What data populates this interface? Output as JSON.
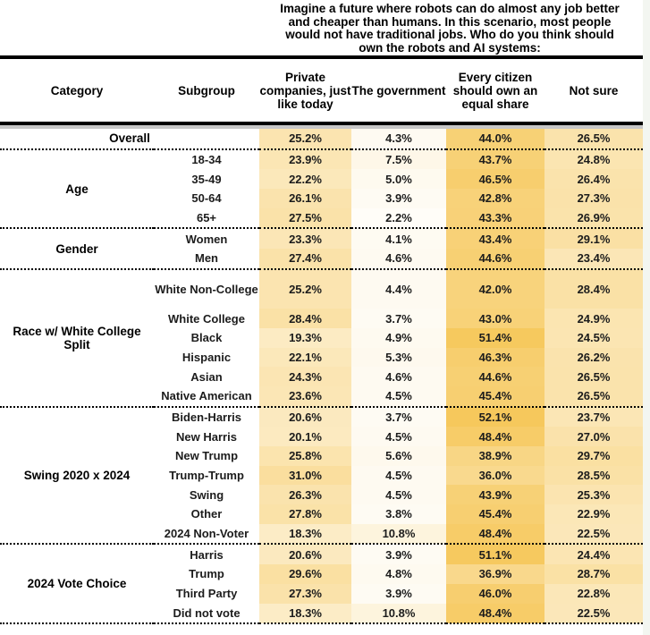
{
  "title_lines": [
    "Imagine a future where robots can do almost any job better",
    "and cheaper than humans. In this scenario, most people",
    "would not have traditional jobs. Who do you think should",
    "own the robots and AI systems:"
  ],
  "chart_data": {
    "type": "heatmap",
    "title": "Imagine a future where robots can do almost any job better and cheaper than humans. In this scenario, most people would not have traditional jobs. Who do you think should own the robots and AI systems:",
    "row_header_columns": [
      "Category",
      "Subgroup"
    ],
    "columns": [
      "Private companies, just like today",
      "The government",
      "Every citizen should own an equal share",
      "Not sure"
    ],
    "value_format": "percent_1dp",
    "heat_scale": {
      "low": "#FFFFFF",
      "high": "#F6C85C",
      "max_value": 52.1
    },
    "groups": [
      {
        "category": "Overall",
        "span_all": true,
        "rows": [
          {
            "subgroup": "Overall",
            "values": [
              25.2,
              4.3,
              44.0,
              26.5
            ]
          }
        ]
      },
      {
        "category": "Age",
        "rows": [
          {
            "subgroup": "18-34",
            "values": [
              23.9,
              7.5,
              43.7,
              24.8
            ]
          },
          {
            "subgroup": "35-49",
            "values": [
              22.2,
              5.0,
              46.5,
              26.4
            ]
          },
          {
            "subgroup": "50-64",
            "values": [
              26.1,
              3.9,
              42.8,
              27.3
            ]
          },
          {
            "subgroup": "65+",
            "values": [
              27.5,
              2.2,
              43.3,
              26.9
            ]
          }
        ]
      },
      {
        "category": "Gender",
        "rows": [
          {
            "subgroup": "Women",
            "values": [
              23.3,
              4.1,
              43.4,
              29.1
            ]
          },
          {
            "subgroup": "Men",
            "values": [
              27.4,
              4.6,
              44.6,
              23.4
            ]
          }
        ]
      },
      {
        "category": "Race w/ White College Split",
        "rows": [
          {
            "subgroup": "White Non-College",
            "tall": true,
            "values": [
              25.2,
              4.4,
              42.0,
              28.4
            ]
          },
          {
            "subgroup": "White College",
            "values": [
              28.4,
              3.7,
              43.0,
              24.9
            ]
          },
          {
            "subgroup": "Black",
            "values": [
              19.3,
              4.9,
              51.4,
              24.5
            ]
          },
          {
            "subgroup": "Hispanic",
            "values": [
              22.1,
              5.3,
              46.3,
              26.2
            ]
          },
          {
            "subgroup": "Asian",
            "values": [
              24.3,
              4.6,
              44.6,
              26.5
            ]
          },
          {
            "subgroup": "Native American",
            "values": [
              23.6,
              4.5,
              45.4,
              26.5
            ]
          }
        ]
      },
      {
        "category": "Swing 2020 x 2024",
        "rows": [
          {
            "subgroup": "Biden-Harris",
            "values": [
              20.6,
              3.7,
              52.1,
              23.7
            ]
          },
          {
            "subgroup": "New Harris",
            "values": [
              20.1,
              4.5,
              48.4,
              27.0
            ]
          },
          {
            "subgroup": "New Trump",
            "values": [
              25.8,
              5.6,
              38.9,
              29.7
            ]
          },
          {
            "subgroup": "Trump-Trump",
            "values": [
              31.0,
              4.5,
              36.0,
              28.5
            ]
          },
          {
            "subgroup": "Swing",
            "values": [
              26.3,
              4.5,
              43.9,
              25.3
            ]
          },
          {
            "subgroup": "Other",
            "values": [
              27.8,
              3.8,
              45.4,
              22.9
            ]
          },
          {
            "subgroup": "2024 Non-Voter",
            "values": [
              18.3,
              10.8,
              48.4,
              22.5
            ]
          }
        ]
      },
      {
        "category": "2024 Vote Choice",
        "rows": [
          {
            "subgroup": "Harris",
            "values": [
              20.6,
              3.9,
              51.1,
              24.4
            ]
          },
          {
            "subgroup": "Trump",
            "values": [
              29.6,
              4.8,
              36.9,
              28.7
            ]
          },
          {
            "subgroup": "Third Party",
            "values": [
              27.3,
              3.9,
              46.0,
              22.8
            ]
          },
          {
            "subgroup": "Did not vote",
            "values": [
              18.3,
              10.8,
              48.4,
              22.5
            ]
          }
        ]
      }
    ]
  }
}
